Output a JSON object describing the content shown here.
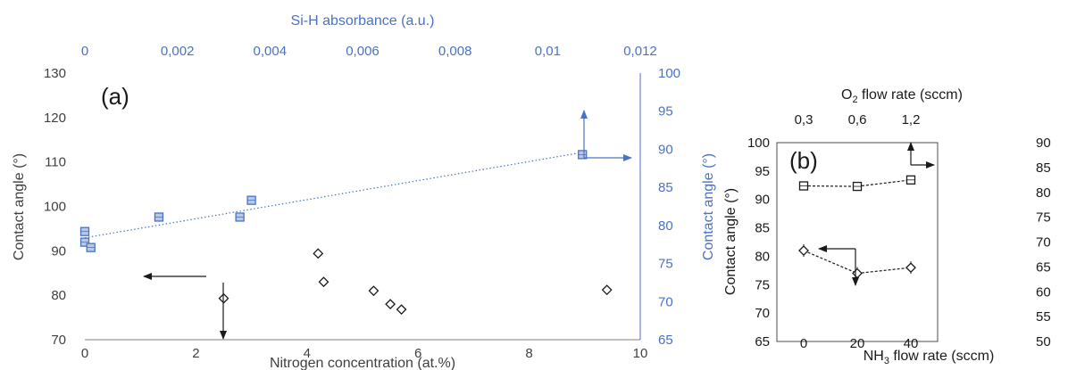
{
  "colors": {
    "blue": "#4a72c4",
    "black": "#1a1a1a",
    "axis_gray": "#7f7f7f"
  },
  "chart_data": [
    {
      "panel": "(a)",
      "type": "scatter",
      "xlabel": "Nitrogen concentration (at.%)",
      "ylabel": "Contact angle (°)",
      "x2label": "Si-H absorbance (a.u.)",
      "y2label": "Contact angle (°)",
      "xlim": [
        0,
        10
      ],
      "ylim": [
        70,
        130
      ],
      "x2lim": [
        0,
        0.012
      ],
      "y2lim": [
        65,
        100
      ],
      "xticks": [
        "0",
        "2",
        "4",
        "6",
        "8",
        "10"
      ],
      "yticks": [
        "70",
        "80",
        "90",
        "100",
        "110",
        "120",
        "130"
      ],
      "x2ticks": [
        "0",
        "0,002",
        "0,004",
        "0,006",
        "0,008",
        "0,01",
        "0,012"
      ],
      "y2ticks": [
        "65",
        "70",
        "75",
        "80",
        "85",
        "90",
        "95",
        "100"
      ],
      "series": [
        {
          "marker": "diamond",
          "color": "#1a1a1a",
          "axes": "bottom-left",
          "x": [
            2.5,
            4.2,
            4.3,
            5.2,
            5.5,
            5.7,
            9.4
          ],
          "y": [
            79.3,
            89.4,
            83.0,
            81.0,
            78.0,
            76.8,
            81.2
          ]
        },
        {
          "marker": "square",
          "color": "#4a72c4",
          "axes": "top-right",
          "trendline": true,
          "x": [
            0.0,
            0.0,
            0.00013,
            0.0016,
            0.00335,
            0.0036,
            0.01075
          ],
          "y": [
            79.2,
            77.8,
            77.1,
            81.1,
            81.1,
            83.3,
            89.3
          ]
        }
      ]
    },
    {
      "panel": "(b)",
      "type": "scatter",
      "xlabel_parts": [
        "NH",
        "3",
        " flow rate (sccm)"
      ],
      "ylabel": "Contact angle (°)",
      "x2label_parts": [
        "O",
        "2",
        " flow rate (sccm)"
      ],
      "xlim": [
        -10,
        50
      ],
      "ylim": [
        65,
        100
      ],
      "y2lim": [
        50,
        90
      ],
      "xticks": [
        "0",
        "20",
        "40"
      ],
      "yticks": [
        "65",
        "70",
        "75",
        "80",
        "85",
        "90",
        "95",
        "100"
      ],
      "x2ticks": [
        "0,3",
        "0,6",
        "1,2"
      ],
      "y2ticks": [
        "50",
        "55",
        "60",
        "65",
        "70",
        "75",
        "80",
        "85",
        "90"
      ],
      "series": [
        {
          "marker": "diamond",
          "color": "#1a1a1a",
          "axes": "bottom-left",
          "connected": true,
          "x": [
            0,
            20,
            40
          ],
          "y": [
            81.0,
            77.0,
            78.0
          ]
        },
        {
          "marker": "square",
          "color": "#1a1a1a",
          "axes": "top-right",
          "connected": true,
          "x": [
            "0,3",
            "0,6",
            "1,2"
          ],
          "y": [
            81.3,
            81.2,
            82.5
          ]
        }
      ]
    }
  ]
}
